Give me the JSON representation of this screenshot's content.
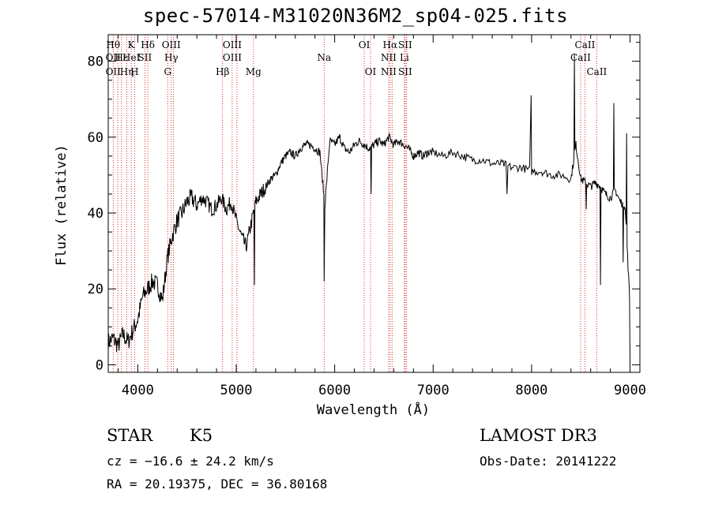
{
  "chart_data": {
    "type": "line",
    "title": "spec-57014-M31020N36M2_sp04-025.fits",
    "xlabel": "Wavelength (Å)",
    "ylabel": "Flux (relative)",
    "xlim": [
      3700,
      9100
    ],
    "ylim": [
      -2,
      87
    ],
    "x_ticks": [
      4000,
      5000,
      6000,
      7000,
      8000,
      9000
    ],
    "y_ticks": [
      0,
      20,
      40,
      60,
      80
    ],
    "grid": false,
    "series": [
      {
        "x": [
          3700,
          3750,
          3800,
          3850,
          3900,
          3950,
          4000,
          4050,
          4100,
          4150,
          4200,
          4250,
          4300,
          4350,
          4400,
          4450,
          4500,
          4550,
          4600,
          4650,
          4700,
          4750,
          4800,
          4850,
          4900,
          4950,
          5000,
          5050,
          5100,
          5150,
          5200,
          5250,
          5300,
          5350,
          5400,
          5450,
          5500,
          5550,
          5600,
          5650,
          5700,
          5750,
          5800,
          5850,
          5900,
          5950,
          6000,
          6050,
          6100,
          6150,
          6200,
          6250,
          6300,
          6350,
          6400,
          6450,
          6500,
          6550,
          6600,
          6650,
          6700,
          6750,
          6800,
          6850,
          6900,
          6950,
          7000,
          7100,
          7200,
          7300,
          7400,
          7500,
          7600,
          7700,
          7800,
          7900,
          8000,
          8100,
          8200,
          8300,
          8400,
          8450,
          8500,
          8550,
          8600,
          8650,
          8700,
          8750,
          8800,
          8850,
          8900,
          8950,
          9000
        ],
        "y": [
          6,
          7,
          5,
          8,
          6,
          9,
          12,
          18,
          20,
          22,
          21,
          17,
          28,
          34,
          38,
          40,
          43,
          44,
          42,
          44,
          43,
          41,
          42,
          44,
          41,
          43,
          38,
          34,
          31,
          37,
          43,
          45,
          47,
          49,
          50,
          53,
          55,
          56,
          55,
          57,
          58,
          58,
          57,
          56,
          42,
          59,
          58,
          60,
          57,
          56,
          58,
          59,
          58,
          57,
          58,
          59,
          58,
          60,
          58,
          59,
          58,
          57,
          55,
          56,
          55,
          56,
          56,
          55,
          56,
          55,
          54,
          54,
          53,
          53,
          52,
          52,
          51,
          51,
          50,
          50,
          49,
          58,
          49,
          48,
          47,
          48,
          47,
          45,
          44,
          46,
          43,
          42,
          15
        ]
      }
    ],
    "dips": [
      {
        "x": 5893,
        "y": 22
      },
      {
        "x": 5185,
        "y": 21
      },
      {
        "x": 8700,
        "y": 21
      },
      {
        "x": 8930,
        "y": 27
      },
      {
        "x": 8555,
        "y": 41
      },
      {
        "x": 7750,
        "y": 45
      },
      {
        "x": 6370,
        "y": 45
      },
      {
        "x": 9000,
        "y": 0
      }
    ],
    "spikes": [
      {
        "x": 7995,
        "y": 71
      },
      {
        "x": 8435,
        "y": 82
      },
      {
        "x": 8835,
        "y": 69
      },
      {
        "x": 8965,
        "y": 61
      }
    ],
    "lines": [
      {
        "x": 3750,
        "labels": [
          "Hθ",
          "OII",
          "OII"
        ]
      },
      {
        "x": 3797
      },
      {
        "x": 3835,
        "labels": [
          "",
          "Hε",
          ""
        ]
      },
      {
        "x": 3889,
        "labels": [
          "",
          "",
          "Hη"
        ]
      },
      {
        "x": 3934,
        "labels": [
          "K",
          "HeI",
          ""
        ]
      },
      {
        "x": 3968,
        "labels": [
          "",
          "",
          "H"
        ]
      },
      {
        "x": 4072,
        "labels": [
          "",
          "SII",
          ""
        ]
      },
      {
        "x": 4102,
        "labels": [
          "Hδ",
          "",
          ""
        ]
      },
      {
        "x": 4304,
        "labels": [
          "",
          "",
          "G"
        ]
      },
      {
        "x": 4340,
        "labels": [
          "OIII",
          "Hγ",
          ""
        ]
      },
      {
        "x": 4363
      },
      {
        "x": 4861,
        "labels": [
          "",
          "",
          "Hβ"
        ]
      },
      {
        "x": 4959,
        "labels": [
          "OIII",
          "OIII",
          ""
        ]
      },
      {
        "x": 5007
      },
      {
        "x": 5175,
        "labels": [
          "",
          "",
          "Mg"
        ]
      },
      {
        "x": 5893,
        "labels": [
          "",
          "Na",
          ""
        ]
      },
      {
        "x": 6300,
        "labels": [
          "OI",
          "",
          ""
        ]
      },
      {
        "x": 6364,
        "labels": [
          "",
          "",
          "OI"
        ]
      },
      {
        "x": 6548,
        "labels": [
          "",
          "NII",
          "NII"
        ]
      },
      {
        "x": 6563,
        "labels": [
          "Hα",
          "",
          ""
        ]
      },
      {
        "x": 6583
      },
      {
        "x": 6708,
        "labels": [
          "",
          "Li",
          ""
        ]
      },
      {
        "x": 6716,
        "labels": [
          "SII",
          "",
          "SII"
        ]
      },
      {
        "x": 6731
      },
      {
        "x": 8498,
        "labels": [
          "",
          "CaII",
          ""
        ]
      },
      {
        "x": 8542,
        "labels": [
          "CaII",
          "",
          ""
        ]
      },
      {
        "x": 8662,
        "labels": [
          "",
          "",
          "CaII"
        ]
      }
    ]
  },
  "footer": {
    "class": "STAR",
    "subclass": "K5",
    "survey": "LAMOST DR3",
    "cz": "cz = −16.6 ± 24.2 km/s",
    "obs_date": "Obs-Date: 20141222",
    "coords": "RA =  20.19375, DEC =  36.80168"
  }
}
